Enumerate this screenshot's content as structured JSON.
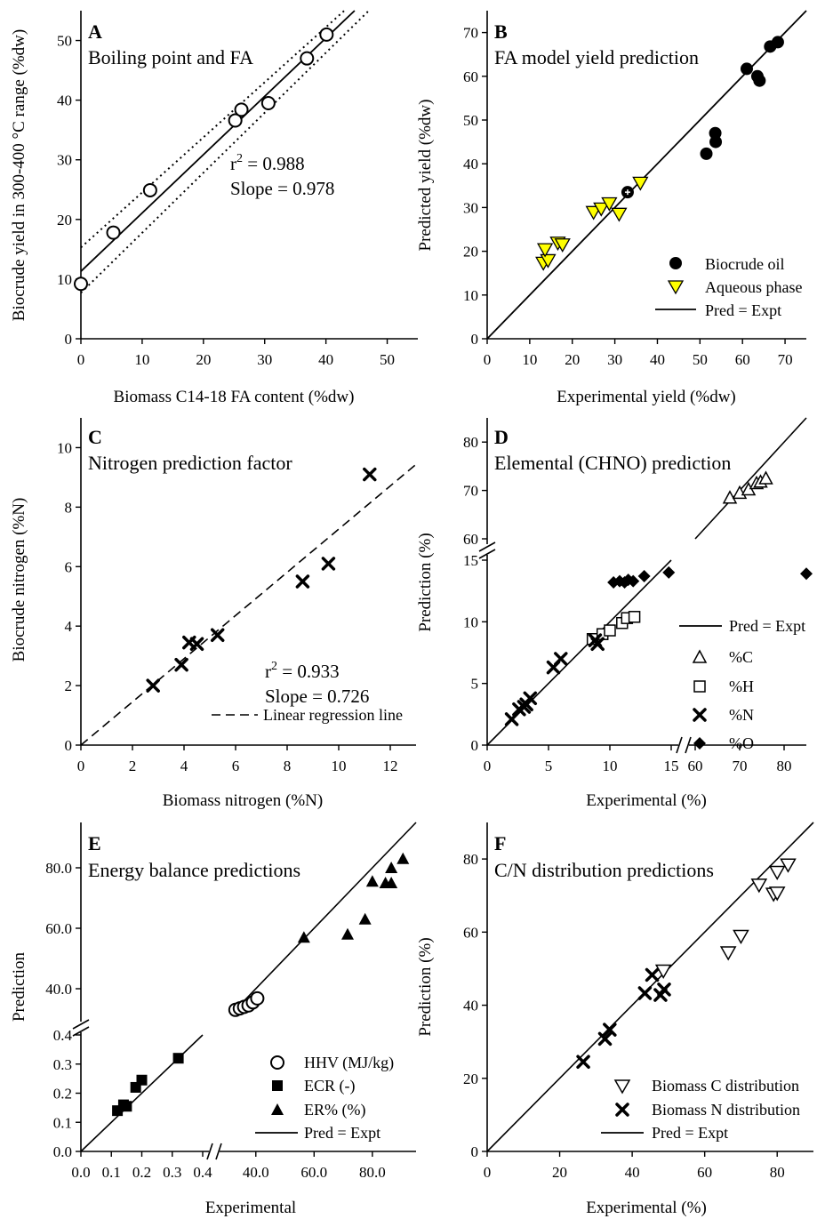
{
  "chart_data": [
    {
      "panel": "A",
      "type": "scatter",
      "title": "Boiling point and FA",
      "xlabel": "Biomass C14-18 FA content (%dw)",
      "ylabel": "Biocrude yield in 300-400 °C range (%dw)",
      "xlim": [
        0,
        55
      ],
      "ylim": [
        0,
        55
      ],
      "xticks": [
        "0",
        "10",
        "20",
        "30",
        "40",
        "50"
      ],
      "yticks": [
        "0",
        "10",
        "20",
        "30",
        "40",
        "50"
      ],
      "annotation_line1": "r",
      "annotation_sup": "2",
      "annotation_line1_rest": " = 0.988",
      "annotation_line2": "Slope = 0.978",
      "points": [
        {
          "x": 0,
          "y": 9.2
        },
        {
          "x": 5.3,
          "y": 17.8
        },
        {
          "x": 11.3,
          "y": 24.9
        },
        {
          "x": 25.2,
          "y": 36.6
        },
        {
          "x": 26.2,
          "y": 38.4
        },
        {
          "x": 30.6,
          "y": 39.5
        },
        {
          "x": 36.9,
          "y": 47.0
        },
        {
          "x": 40.1,
          "y": 51.0
        }
      ],
      "regression": {
        "slope": 0.978,
        "intercept": 11.3
      },
      "confidence_band": [
        {
          "x0": 0,
          "y0": 15.3,
          "x1": 43,
          "y1": 55
        },
        {
          "x0": 0,
          "y0": 7.7,
          "x1": 47,
          "y1": 55
        }
      ]
    },
    {
      "panel": "B",
      "type": "scatter",
      "title": "FA model yield prediction",
      "xlabel": "Experimental yield (%dw)",
      "ylabel": "Predicted yield (%dw)",
      "xlim": [
        0,
        75
      ],
      "ylim": [
        0,
        75
      ],
      "xticks": [
        "0",
        "10",
        "20",
        "30",
        "40",
        "50",
        "60",
        "70"
      ],
      "yticks": [
        "0",
        "10",
        "20",
        "30",
        "40",
        "50",
        "60",
        "70"
      ],
      "legend": [
        "Biocrude oil",
        "Aqueous phase",
        "Pred = Expt"
      ],
      "legend_position": "bottom-right",
      "series": [
        {
          "name": "Biocrude oil",
          "points": [
            {
              "x": 33.0,
              "y": 33.5
            },
            {
              "x": 51.5,
              "y": 42.3
            },
            {
              "x": 53.7,
              "y": 45.0
            },
            {
              "x": 53.6,
              "y": 47.0
            },
            {
              "x": 61.0,
              "y": 61.7
            },
            {
              "x": 63.5,
              "y": 60.0
            },
            {
              "x": 64.0,
              "y": 59.0
            },
            {
              "x": 66.5,
              "y": 66.8
            },
            {
              "x": 68.3,
              "y": 67.8
            }
          ]
        },
        {
          "name": "Aqueous phase",
          "points": [
            {
              "x": 13.2,
              "y": 17.4
            },
            {
              "x": 14.3,
              "y": 18.0
            },
            {
              "x": 13.6,
              "y": 20.5
            },
            {
              "x": 16.6,
              "y": 22.0
            },
            {
              "x": 17.7,
              "y": 21.6
            },
            {
              "x": 25.0,
              "y": 29.0
            },
            {
              "x": 26.8,
              "y": 29.8
            },
            {
              "x": 28.7,
              "y": 31.0
            },
            {
              "x": 31.0,
              "y": 28.6
            },
            {
              "x": 36.0,
              "y": 35.7
            }
          ]
        }
      ]
    },
    {
      "panel": "C",
      "type": "scatter",
      "title": "Nitrogen prediction factor",
      "xlabel": "Biomass nitrogen (%N)",
      "ylabel": "Biocrude nitrogen (%N)",
      "xlim": [
        0,
        13
      ],
      "ylim": [
        0,
        11
      ],
      "xticks": [
        "0",
        "2",
        "4",
        "6",
        "8",
        "10",
        "12"
      ],
      "yticks": [
        "0",
        "2",
        "4",
        "6",
        "8",
        "10"
      ],
      "annotation_line1": "r",
      "annotation_sup": "2",
      "annotation_line1_rest": " = 0.933",
      "annotation_line2": "Slope = 0.726",
      "legend": [
        "Linear regression line"
      ],
      "points": [
        {
          "x": 2.8,
          "y": 2.0
        },
        {
          "x": 3.9,
          "y": 2.7
        },
        {
          "x": 4.2,
          "y": 3.45
        },
        {
          "x": 4.5,
          "y": 3.4
        },
        {
          "x": 5.3,
          "y": 3.7
        },
        {
          "x": 8.6,
          "y": 5.5
        },
        {
          "x": 9.6,
          "y": 6.1
        },
        {
          "x": 11.2,
          "y": 9.1
        }
      ],
      "regression": {
        "slope": 0.726,
        "intercept": 0
      }
    },
    {
      "panel": "D",
      "type": "scatter",
      "title": "Elemental (CHNO) prediction",
      "xlabel": "Experimental (%)",
      "ylabel": "Prediction (%)",
      "broken_axes": true,
      "x_segments": [
        [
          0,
          15
        ],
        [
          60,
          85
        ]
      ],
      "y_segments": [
        [
          0,
          15
        ],
        [
          60,
          85
        ]
      ],
      "xticks_low": [
        "0",
        "5",
        "10",
        "15"
      ],
      "xticks_high": [
        "60",
        "70",
        "80"
      ],
      "yticks_low": [
        "0",
        "5",
        "10",
        "15"
      ],
      "yticks_high": [
        "60",
        "70",
        "80"
      ],
      "legend": [
        "Pred = Expt",
        "%C",
        "%H",
        "%N",
        "%O"
      ],
      "legend_position": "right",
      "series": [
        {
          "name": "%C",
          "points": [
            {
              "x": 67.8,
              "y": 68.5
            },
            {
              "x": 70.0,
              "y": 69.5
            },
            {
              "x": 72.0,
              "y": 70.2
            },
            {
              "x": 73.8,
              "y": 71.5
            },
            {
              "x": 74.7,
              "y": 71.8
            },
            {
              "x": 75.9,
              "y": 72.5
            }
          ]
        },
        {
          "name": "%H",
          "points": [
            {
              "x": 8.6,
              "y": 8.6
            },
            {
              "x": 9.4,
              "y": 9.0
            },
            {
              "x": 10.0,
              "y": 9.3
            },
            {
              "x": 11.0,
              "y": 9.9
            },
            {
              "x": 11.4,
              "y": 10.3
            },
            {
              "x": 12.0,
              "y": 10.4
            }
          ]
        },
        {
          "name": "%N",
          "points": [
            {
              "x": 2.0,
              "y": 2.1
            },
            {
              "x": 2.6,
              "y": 2.9
            },
            {
              "x": 3.2,
              "y": 3.3
            },
            {
              "x": 3.5,
              "y": 3.8
            },
            {
              "x": 3.0,
              "y": 3.1
            },
            {
              "x": 5.4,
              "y": 6.3
            },
            {
              "x": 6.0,
              "y": 7.0
            },
            {
              "x": 9.0,
              "y": 8.2
            },
            {
              "x": 8.8,
              "y": 8.5
            }
          ]
        },
        {
          "name": "%O",
          "points": [
            {
              "x": 10.3,
              "y": 13.2
            },
            {
              "x": 10.8,
              "y": 13.3
            },
            {
              "x": 11.2,
              "y": 13.2
            },
            {
              "x": 11.5,
              "y": 13.4
            },
            {
              "x": 11.9,
              "y": 13.3
            },
            {
              "x": 12.8,
              "y": 13.7
            },
            {
              "x": 15.4,
              "y": 13.9
            },
            {
              "x": 14.8,
              "y": 14.0
            }
          ]
        }
      ]
    },
    {
      "panel": "E",
      "type": "scatter",
      "title": "Energy balance predictions",
      "xlabel": "Experimental",
      "ylabel": "Prediction",
      "broken_axes": true,
      "xticks_low": [
        "0.0",
        "0.1",
        "0.2",
        "0.3",
        "0.4"
      ],
      "xticks_high": [
        "40.0",
        "60.0",
        "80.0"
      ],
      "yticks_low": [
        "0.0",
        "0.1",
        "0.2",
        "0.3",
        "0.4"
      ],
      "yticks_high": [
        "40.0",
        "60.0",
        "80.0"
      ],
      "legend": [
        "HHV (MJ/kg)",
        "ECR (-)",
        "ER% (%)",
        "Pred = Expt"
      ],
      "legend_position": "bottom-right",
      "series": [
        {
          "name": "HHV (MJ/kg)",
          "points": [
            {
              "x": 33.0,
              "y": 33.0
            },
            {
              "x": 34.5,
              "y": 33.5
            },
            {
              "x": 36.0,
              "y": 34.0
            },
            {
              "x": 37.5,
              "y": 34.5
            },
            {
              "x": 39.0,
              "y": 35.5
            },
            {
              "x": 40.5,
              "y": 36.8
            }
          ]
        },
        {
          "name": "ECR (-)",
          "points": [
            {
              "x": 0.12,
              "y": 0.14
            },
            {
              "x": 0.14,
              "y": 0.16
            },
            {
              "x": 0.15,
              "y": 0.155
            },
            {
              "x": 0.18,
              "y": 0.22
            },
            {
              "x": 0.2,
              "y": 0.245
            },
            {
              "x": 0.32,
              "y": 0.32
            }
          ]
        },
        {
          "name": "ER% (%)",
          "points": [
            {
              "x": 56.5,
              "y": 57.0
            },
            {
              "x": 71.5,
              "y": 58.0
            },
            {
              "x": 77.5,
              "y": 63.0
            },
            {
              "x": 80.0,
              "y": 75.5
            },
            {
              "x": 84.5,
              "y": 75.0
            },
            {
              "x": 86.5,
              "y": 75.0
            },
            {
              "x": 86.5,
              "y": 80.0
            },
            {
              "x": 90.5,
              "y": 83.0
            }
          ]
        }
      ]
    },
    {
      "panel": "F",
      "type": "scatter",
      "title": "C/N distribution predictions",
      "xlabel": "Experimental (%)",
      "ylabel": "Prediction (%)",
      "xlim": [
        0,
        90
      ],
      "ylim": [
        0,
        90
      ],
      "xticks": [
        "0",
        "20",
        "40",
        "60",
        "80"
      ],
      "yticks": [
        "0",
        "20",
        "40",
        "60",
        "80"
      ],
      "legend": [
        "Biomass C distribution",
        "Biomass N distribution",
        "Pred = Expt"
      ],
      "legend_position": "bottom-right",
      "series": [
        {
          "name": "Biomass C distribution",
          "points": [
            {
              "x": 48.6,
              "y": 49.5
            },
            {
              "x": 66.5,
              "y": 54.5
            },
            {
              "x": 70.0,
              "y": 59.0
            },
            {
              "x": 75.0,
              "y": 73.0
            },
            {
              "x": 79.0,
              "y": 70.5
            },
            {
              "x": 80.0,
              "y": 70.8
            },
            {
              "x": 80.0,
              "y": 76.5
            },
            {
              "x": 83.0,
              "y": 78.5
            }
          ]
        },
        {
          "name": "Biomass N distribution",
          "points": [
            {
              "x": 26.5,
              "y": 24.5
            },
            {
              "x": 32.5,
              "y": 30.8
            },
            {
              "x": 33.8,
              "y": 33.3
            },
            {
              "x": 43.5,
              "y": 43.3
            },
            {
              "x": 45.5,
              "y": 48.3
            },
            {
              "x": 47.8,
              "y": 42.8
            },
            {
              "x": 48.8,
              "y": 44.3
            }
          ]
        }
      ]
    }
  ]
}
